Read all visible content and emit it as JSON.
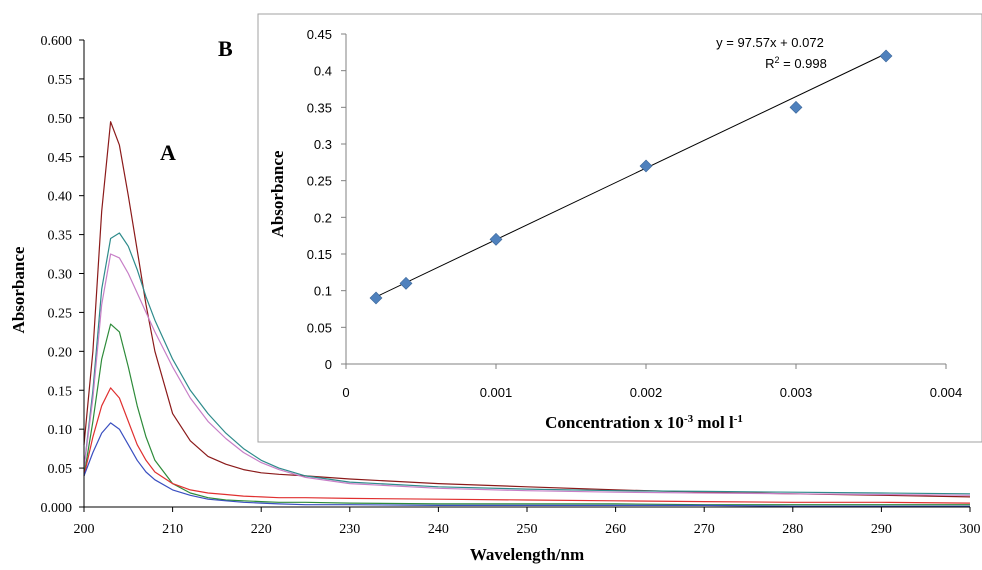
{
  "chart_data": [
    {
      "panel": "A",
      "type": "line",
      "xlabel": "Wavelength/nm",
      "ylabel": "Absorbance",
      "xlim": [
        200,
        300
      ],
      "ylim": [
        0,
        0.6
      ],
      "x_ticks": [
        "200",
        "210",
        "220",
        "230",
        "240",
        "250",
        "260",
        "270",
        "280",
        "290",
        "300"
      ],
      "y_ticks": [
        "0.000",
        "0.05",
        "0.10",
        "0.15",
        "0.20",
        "0.25",
        "0.30",
        "0.35",
        "0.40",
        "0.45",
        "0.50",
        "0.55",
        "0.600"
      ],
      "x": [
        200,
        201,
        202,
        203,
        204,
        205,
        206,
        207,
        208,
        210,
        212,
        214,
        216,
        218,
        220,
        222,
        225,
        230,
        240,
        250,
        260,
        270,
        280,
        290,
        300
      ],
      "series": [
        {
          "color": "#8b1a1a",
          "values": [
            0.08,
            0.2,
            0.38,
            0.495,
            0.465,
            0.4,
            0.33,
            0.26,
            0.2,
            0.12,
            0.085,
            0.065,
            0.055,
            0.048,
            0.044,
            0.042,
            0.04,
            0.036,
            0.03,
            0.026,
            0.022,
            0.019,
            0.017,
            0.015,
            0.013
          ]
        },
        {
          "color": "#2e8b8b",
          "values": [
            0.05,
            0.15,
            0.28,
            0.345,
            0.352,
            0.335,
            0.305,
            0.27,
            0.24,
            0.19,
            0.15,
            0.12,
            0.095,
            0.075,
            0.06,
            0.05,
            0.04,
            0.032,
            0.026,
            0.023,
            0.021,
            0.02,
            0.019,
            0.018,
            0.017
          ]
        },
        {
          "color": "#c77fc7",
          "values": [
            0.05,
            0.14,
            0.26,
            0.325,
            0.32,
            0.3,
            0.275,
            0.25,
            0.225,
            0.18,
            0.14,
            0.11,
            0.088,
            0.07,
            0.057,
            0.048,
            0.038,
            0.03,
            0.024,
            0.021,
            0.019,
            0.018,
            0.017,
            0.016,
            0.015
          ]
        },
        {
          "color": "#2e8b3a",
          "values": [
            0.04,
            0.11,
            0.19,
            0.235,
            0.225,
            0.18,
            0.13,
            0.09,
            0.06,
            0.03,
            0.018,
            0.012,
            0.009,
            0.008,
            0.007,
            0.006,
            0.006,
            0.005,
            0.004,
            0.004,
            0.004,
            0.003,
            0.003,
            0.003,
            0.003
          ]
        },
        {
          "color": "#e03030",
          "values": [
            0.04,
            0.09,
            0.13,
            0.153,
            0.14,
            0.11,
            0.08,
            0.06,
            0.045,
            0.03,
            0.022,
            0.018,
            0.016,
            0.014,
            0.013,
            0.012,
            0.012,
            0.011,
            0.01,
            0.009,
            0.008,
            0.007,
            0.006,
            0.006,
            0.005
          ]
        },
        {
          "color": "#3a4fc0",
          "values": [
            0.04,
            0.07,
            0.095,
            0.108,
            0.1,
            0.08,
            0.06,
            0.045,
            0.035,
            0.022,
            0.015,
            0.01,
            0.008,
            0.006,
            0.005,
            0.004,
            0.003,
            0.003,
            0.002,
            0.002,
            0.002,
            0.002,
            0.001,
            0.001,
            0.001
          ]
        }
      ],
      "annotation": "A"
    },
    {
      "panel": "B",
      "type": "scatter",
      "xlabel": "Concentration x 10",
      "xlabel_sup1": "-3",
      "xlabel_mid": " mol l",
      "xlabel_sup2": "-1",
      "ylabel": "Absorbance",
      "xlim": [
        0,
        0.004
      ],
      "ylim": [
        0,
        0.45
      ],
      "x_ticks": [
        "0",
        "0.001",
        "0.002",
        "0.003",
        "0.004"
      ],
      "y_ticks": [
        "0",
        "0.05",
        "0.1",
        "0.15",
        "0.2",
        "0.25",
        "0.3",
        "0.35",
        "0.4",
        "0.45"
      ],
      "points": [
        {
          "x": 0.0002,
          "y": 0.09
        },
        {
          "x": 0.0004,
          "y": 0.11
        },
        {
          "x": 0.001,
          "y": 0.17
        },
        {
          "x": 0.002,
          "y": 0.27
        },
        {
          "x": 0.003,
          "y": 0.35
        },
        {
          "x": 0.0036,
          "y": 0.42
        }
      ],
      "marker_color": "#4f81bd",
      "trendline": {
        "slope": 97.57,
        "intercept": 0.072
      },
      "equation": "y = 97.57x + 0.072",
      "r2_prefix": "R",
      "r2_sup": "2",
      "r2_value": " = 0.998",
      "annotation": "B"
    }
  ]
}
